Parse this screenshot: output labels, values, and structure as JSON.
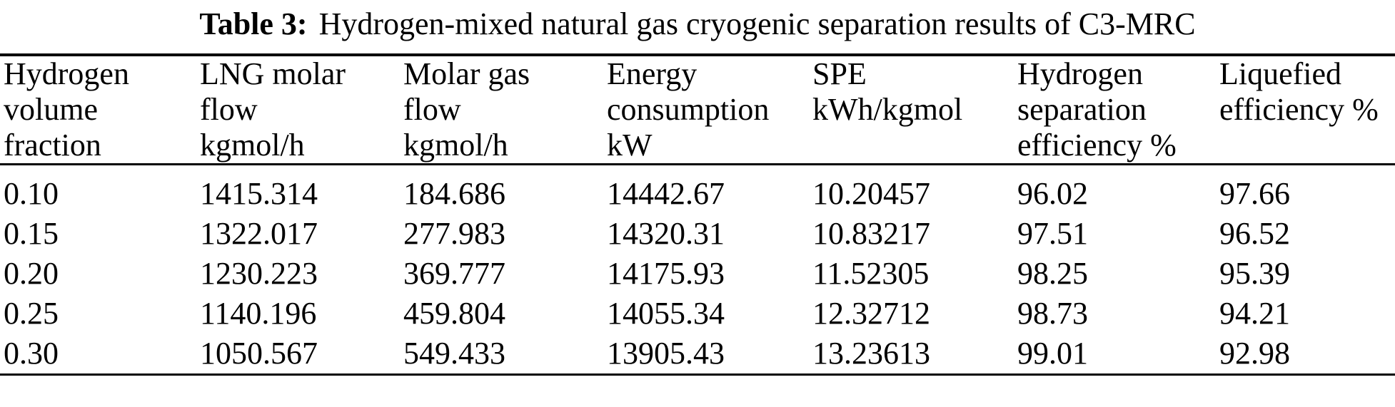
{
  "page": {
    "background": "#ffffff",
    "text_color": "#000000",
    "rule_color": "#000000"
  },
  "caption": {
    "label": "Table 3:",
    "text": "Hydrogen-mixed natural gas cryogenic separation results of C3-MRC"
  },
  "table": {
    "columns": [
      {
        "id": "hydrogen-volume-fraction",
        "header_lines": [
          "Hydrogen",
          "volume",
          "fraction"
        ]
      },
      {
        "id": "lng-molar-flow",
        "header_lines": [
          "LNG molar",
          "flow",
          "kgmol/h"
        ]
      },
      {
        "id": "molar-gas-flow",
        "header_lines": [
          "Molar gas",
          "flow",
          "kgmol/h"
        ]
      },
      {
        "id": "energy-consumption",
        "header_lines": [
          "Energy",
          "consumption",
          "kW"
        ]
      },
      {
        "id": "spe",
        "header_lines": [
          "SPE",
          "kWh/kgmol"
        ]
      },
      {
        "id": "hydrogen-separation-efficiency",
        "header_lines": [
          "Hydrogen",
          "separation",
          "efficiency %"
        ]
      },
      {
        "id": "liquefied-efficiency",
        "header_lines": [
          "Liquefied",
          "efficiency %"
        ]
      }
    ],
    "rows": [
      [
        "0.10",
        "1415.314",
        "184.686",
        "14442.67",
        "10.20457",
        "96.02",
        "97.66"
      ],
      [
        "0.15",
        "1322.017",
        "277.983",
        "14320.31",
        "10.83217",
        "97.51",
        "96.52"
      ],
      [
        "0.20",
        "1230.223",
        "369.777",
        "14175.93",
        "11.52305",
        "98.25",
        "95.39"
      ],
      [
        "0.25",
        "1140.196",
        "459.804",
        "14055.34",
        "12.32712",
        "98.73",
        "94.21"
      ],
      [
        "0.30",
        "1050.567",
        "549.433",
        "13905.43",
        "13.23613",
        "99.01",
        "92.98"
      ]
    ]
  }
}
